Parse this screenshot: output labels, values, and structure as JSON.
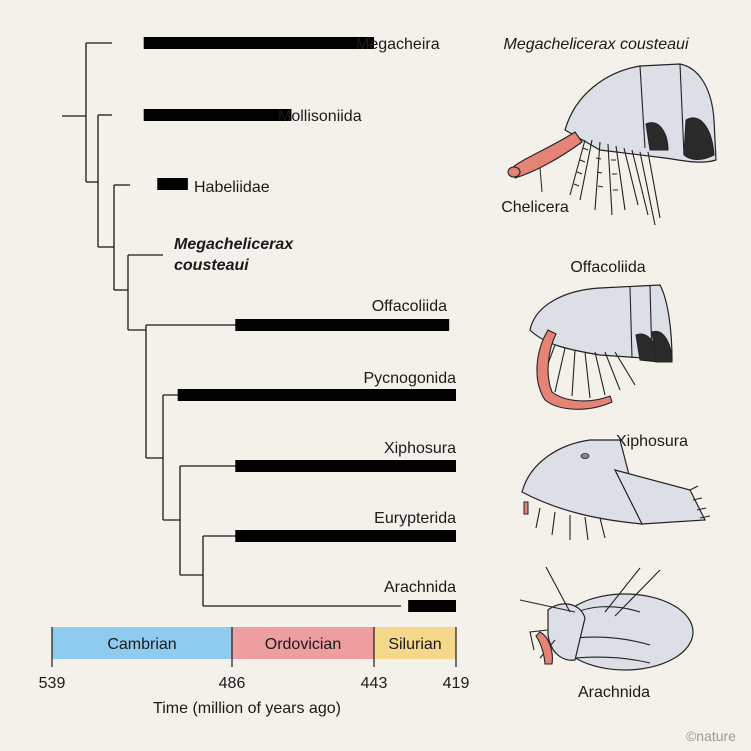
{
  "taxa": [
    {
      "name": "Megacheira",
      "italic": false,
      "range": [
        512,
        443
      ]
    },
    {
      "name": "Mollisoniida",
      "italic": false,
      "range": [
        512,
        468
      ]
    },
    {
      "name": "Habeliidae",
      "italic": false,
      "range": [
        508,
        499
      ]
    },
    {
      "name_lines": [
        "Megachelicerax",
        "cousteaui"
      ],
      "italic": true,
      "bold": true,
      "range": null
    },
    {
      "name": "Offacoliida",
      "italic": false,
      "range": [
        485,
        421
      ]
    },
    {
      "name": "Pycnogonida",
      "italic": false,
      "range": [
        502,
        419
      ]
    },
    {
      "name": "Xiphosura",
      "italic": false,
      "range": [
        485,
        419
      ]
    },
    {
      "name": "Eurypterida",
      "italic": false,
      "range": [
        485,
        419
      ]
    },
    {
      "name": "Arachnida",
      "italic": false,
      "range": [
        433,
        419
      ]
    }
  ],
  "timescale": {
    "axis_label": "Time (million of years ago)",
    "ticks": [
      "539",
      "486",
      "443",
      "419"
    ],
    "periods": [
      {
        "name": "Cambrian",
        "start": 539,
        "end": 486,
        "color": "#8ecbee"
      },
      {
        "name": "Ordovician",
        "start": 486,
        "end": 443,
        "color": "#ef9ea0"
      },
      {
        "name": "Silurian",
        "start": 443,
        "end": 419,
        "color": "#f5d88a"
      }
    ]
  },
  "illustrations": {
    "megachelicerax_title": "Megachelicerax cousteaui",
    "chelicera_label": "Chelicera",
    "offacoliida_label": "Offacoliida",
    "xiphosura_label": "Xiphosura",
    "arachnida_label": "Arachnida"
  },
  "credit": "©nature",
  "colors": {
    "background": "#f4f1ea",
    "appendage_red": "#e58377",
    "body_grey": "#dcdfe6",
    "bar": "#000000"
  }
}
